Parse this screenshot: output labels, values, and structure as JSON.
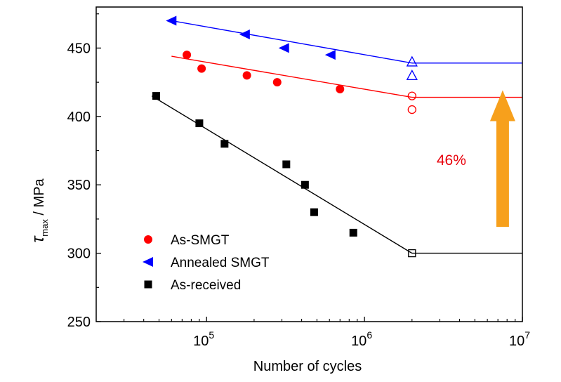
{
  "chart_data": {
    "type": "scatter",
    "title": "",
    "xlabel": "Number of cycles",
    "ylabel_symbol": "τ",
    "ylabel_sub": "max",
    "ylabel_unit": " / MPa",
    "xscale": "log",
    "xlim": [
      20000,
      10000000
    ],
    "ylim": [
      250,
      480
    ],
    "x_ticks": [
      {
        "value": 100000,
        "base": "10",
        "exp": "5"
      },
      {
        "value": 1000000,
        "base": "10",
        "exp": "6"
      },
      {
        "value": 10000000,
        "base": "10",
        "exp": "7"
      }
    ],
    "y_ticks": [
      250,
      300,
      350,
      400,
      450
    ],
    "legend_position": "bottom-left",
    "series": [
      {
        "name": "As-SMGT",
        "color": "#ff0000",
        "marker": "circle",
        "points": [
          {
            "x": 75000,
            "y": 445
          },
          {
            "x": 93000,
            "y": 435
          },
          {
            "x": 180000,
            "y": 430
          },
          {
            "x": 280000,
            "y": 425
          },
          {
            "x": 700000,
            "y": 420
          }
        ],
        "runouts": [
          {
            "x": 2000000,
            "y": 415
          },
          {
            "x": 2000000,
            "y": 405
          }
        ],
        "fit_line": [
          [
            60000,
            444
          ],
          [
            2000000,
            414
          ]
        ],
        "limit_line": [
          [
            2000000,
            414
          ],
          [
            10000000,
            414
          ]
        ]
      },
      {
        "name": "Annealed SMGT",
        "color": "#0000ff",
        "marker": "triangle-left",
        "points": [
          {
            "x": 60000,
            "y": 470
          },
          {
            "x": 175000,
            "y": 460
          },
          {
            "x": 310000,
            "y": 450
          },
          {
            "x": 610000,
            "y": 445
          }
        ],
        "runouts": [
          {
            "x": 2000000,
            "y": 440
          },
          {
            "x": 2000000,
            "y": 430
          }
        ],
        "fit_line": [
          [
            60000,
            470
          ],
          [
            2000000,
            439
          ]
        ],
        "limit_line": [
          [
            2000000,
            439
          ],
          [
            10000000,
            439
          ]
        ]
      },
      {
        "name": "As-received",
        "color": "#000000",
        "marker": "square",
        "points": [
          {
            "x": 48000,
            "y": 415
          },
          {
            "x": 90000,
            "y": 395
          },
          {
            "x": 130000,
            "y": 380
          },
          {
            "x": 320000,
            "y": 365
          },
          {
            "x": 420000,
            "y": 350
          },
          {
            "x": 480000,
            "y": 330
          },
          {
            "x": 850000,
            "y": 315
          }
        ],
        "runouts": [
          {
            "x": 2000000,
            "y": 300
          }
        ],
        "fit_line": [
          [
            45000,
            415
          ],
          [
            2000000,
            300
          ]
        ],
        "limit_line": [
          [
            2000000,
            300
          ],
          [
            10000000,
            300
          ]
        ]
      }
    ],
    "annotation": {
      "text": "46%",
      "color": "#e8000b",
      "arrow_color": "#f7a01c",
      "arrow_from_y": 310,
      "arrow_to_y": 414,
      "arrow_x": 7500000
    }
  }
}
